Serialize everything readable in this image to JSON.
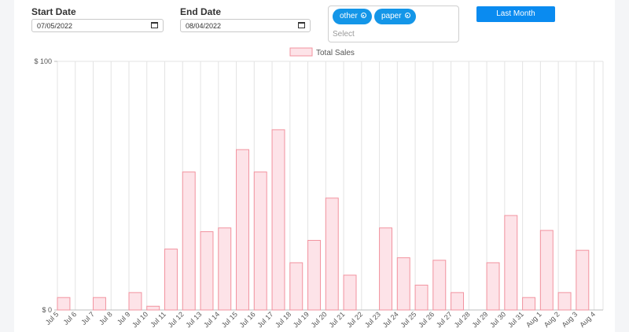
{
  "filters": {
    "start_label": "Start Date",
    "start_value": "07/05/2022",
    "end_label": "End Date",
    "end_value": "08/04/2022",
    "tags": [
      "other",
      "paper"
    ],
    "select_placeholder": "Select",
    "button_label": "Last Month"
  },
  "chart_data": {
    "type": "bar",
    "legend": [
      "Total Sales"
    ],
    "legend_position": "top",
    "grid": true,
    "colors": {
      "bar_fill": "#fde3e8",
      "bar_stroke": "#f2939f",
      "grid": "#e3e3e3"
    },
    "y_ticks": [
      "$ 100",
      "$ 0"
    ],
    "ylim": [
      0,
      100
    ],
    "categories": [
      "Jul 5",
      "Jul 6",
      "Jul 7",
      "Jul 8",
      "Jul 9",
      "Jul 10",
      "Jul 11",
      "Jul 12",
      "Jul 13",
      "Jul 14",
      "Jul 15",
      "Jul 16",
      "Jul 17",
      "Jul 18",
      "Jul 19",
      "Jul 20",
      "Jul 21",
      "Jul 22",
      "Jul 23",
      "Jul 24",
      "Jul 25",
      "Jul 26",
      "Jul 27",
      "Jul 28",
      "Jul 29",
      "Jul 30",
      "Jul 31",
      "Aug 1",
      "Aug 2",
      "Aug 3",
      "Aug 4"
    ],
    "series": [
      {
        "name": "Total Sales",
        "values": [
          5,
          0,
          5,
          0,
          7,
          1.5,
          24.5,
          55.5,
          31.5,
          33,
          64.5,
          55.5,
          72.5,
          19,
          28,
          45,
          14,
          0,
          33,
          21,
          10,
          20,
          7,
          0,
          19,
          38,
          5,
          32,
          7,
          24,
          0
        ]
      }
    ]
  }
}
